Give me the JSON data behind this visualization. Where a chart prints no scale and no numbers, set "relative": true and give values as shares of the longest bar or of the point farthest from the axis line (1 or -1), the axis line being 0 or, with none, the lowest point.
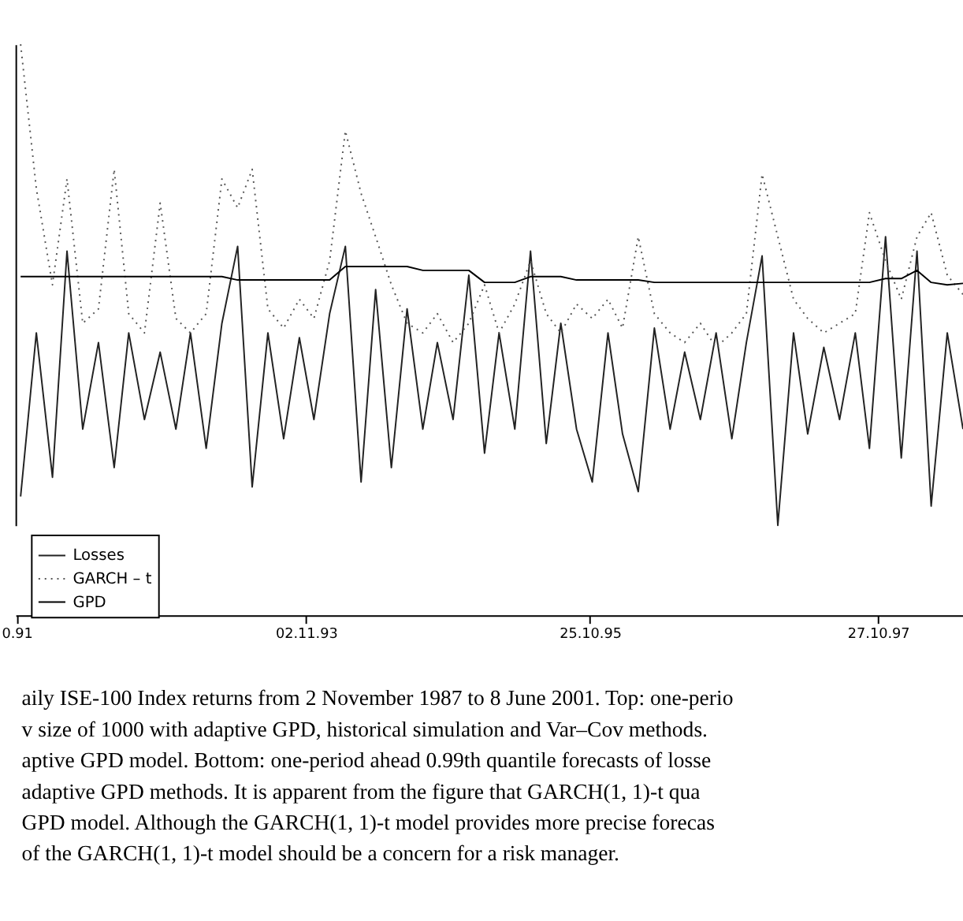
{
  "chart_data": {
    "type": "line",
    "relative": true,
    "tick_labels": "x",
    "legend": "bottom left",
    "x": [
      "1991-11-07",
      "1991-12-17",
      "1992-01-27",
      "1992-03-04",
      "1992-04-13",
      "1992-05-23",
      "1992-07-02",
      "1992-08-08",
      "1992-09-17",
      "1992-10-27",
      "1992-12-06",
      "1993-01-12",
      "1993-02-21",
      "1993-04-02",
      "1993-05-12",
      "1993-06-18",
      "1993-07-28",
      "1993-09-06",
      "1993-10-16",
      "1993-11-22",
      "1994-01-01",
      "1994-02-10",
      "1994-03-22",
      "1994-04-28",
      "1994-06-07",
      "1994-07-17",
      "1994-08-26",
      "1994-10-02",
      "1994-11-11",
      "1994-12-21",
      "1995-01-30",
      "1995-03-08",
      "1995-04-17",
      "1995-05-27",
      "1995-07-06",
      "1995-08-12",
      "1995-09-21",
      "1995-10-31",
      "1995-12-10",
      "1996-01-16",
      "1996-02-25",
      "1996-04-06",
      "1996-05-16",
      "1996-06-22",
      "1996-08-01",
      "1996-09-10",
      "1996-10-20",
      "1996-11-26",
      "1997-01-05",
      "1997-02-14",
      "1997-03-26",
      "1997-05-01",
      "1997-06-11",
      "1997-07-21",
      "1997-08-30",
      "1997-10-05",
      "1997-11-15",
      "1997-12-25",
      "1998-02-03",
      "1998-03-11",
      "1998-04-21",
      "1998-05-31"
    ],
    "xlim": [
      "1991-10-25",
      "1998-05-31"
    ],
    "xticks": [
      {
        "value": "1991-10-28",
        "label": "0.91"
      },
      {
        "value": "1993-11-02",
        "label": "02.11.93"
      },
      {
        "value": "1995-10-25",
        "label": "25.10.95"
      },
      {
        "value": "1997-10-27",
        "label": "27.10.97"
      }
    ],
    "series": [
      {
        "name": "Losses",
        "color": "#222222",
        "line_style": "solid",
        "values": [
          0.06,
          0.4,
          0.1,
          0.57,
          0.2,
          0.38,
          0.12,
          0.4,
          0.22,
          0.36,
          0.2,
          0.4,
          0.16,
          0.42,
          0.58,
          0.08,
          0.4,
          0.18,
          0.39,
          0.22,
          0.44,
          0.58,
          0.09,
          0.49,
          0.12,
          0.45,
          0.2,
          0.38,
          0.22,
          0.52,
          0.15,
          0.4,
          0.2,
          0.57,
          0.17,
          0.42,
          0.2,
          0.09,
          0.4,
          0.19,
          0.07,
          0.41,
          0.2,
          0.36,
          0.22,
          0.4,
          0.18,
          0.38,
          0.56,
          0.0,
          0.4,
          0.19,
          0.37,
          0.22,
          0.4,
          0.16,
          0.6,
          0.14,
          0.57,
          0.04,
          0.4,
          0.2
        ]
      },
      {
        "name": "GARCH – t",
        "color": "#555555",
        "line_style": "dotted",
        "values": [
          1.0,
          0.7,
          0.5,
          0.72,
          0.42,
          0.45,
          0.74,
          0.44,
          0.4,
          0.67,
          0.43,
          0.4,
          0.44,
          0.72,
          0.66,
          0.74,
          0.45,
          0.41,
          0.47,
          0.43,
          0.55,
          0.82,
          0.69,
          0.6,
          0.5,
          0.42,
          0.4,
          0.44,
          0.38,
          0.42,
          0.5,
          0.4,
          0.46,
          0.55,
          0.44,
          0.4,
          0.46,
          0.43,
          0.47,
          0.41,
          0.6,
          0.44,
          0.4,
          0.38,
          0.42,
          0.37,
          0.4,
          0.44,
          0.73,
          0.6,
          0.47,
          0.43,
          0.4,
          0.42,
          0.44,
          0.65,
          0.55,
          0.47,
          0.6,
          0.65,
          0.52,
          0.48
        ]
      },
      {
        "name": "GPD",
        "color": "#000000",
        "line_style": "solid",
        "values": [
          0.517,
          0.517,
          0.517,
          0.517,
          0.517,
          0.517,
          0.517,
          0.517,
          0.517,
          0.517,
          0.517,
          0.517,
          0.517,
          0.517,
          0.51,
          0.51,
          0.51,
          0.51,
          0.51,
          0.51,
          0.51,
          0.538,
          0.538,
          0.538,
          0.538,
          0.538,
          0.53,
          0.53,
          0.53,
          0.53,
          0.505,
          0.505,
          0.505,
          0.517,
          0.517,
          0.517,
          0.51,
          0.51,
          0.51,
          0.51,
          0.51,
          0.505,
          0.505,
          0.505,
          0.505,
          0.505,
          0.505,
          0.505,
          0.505,
          0.505,
          0.505,
          0.505,
          0.505,
          0.505,
          0.505,
          0.505,
          0.513,
          0.513,
          0.53,
          0.505,
          0.5,
          0.503
        ]
      }
    ],
    "annotations": [
      "aily ISE-100 Index returns from 2 November 1987 to 8 June 2001. Top: one-perio",
      "v size of 1000 with adaptive GPD, historical simulation and Var–Cov methods.",
      "aptive GPD model. Bottom: one-period ahead 0.99th quantile forecasts of losse",
      "adaptive GPD methods. It is apparent from the figure that GARCH(1, 1)-t qua",
      "GPD model. Although the GARCH(1, 1)-t model provides more precise forecas",
      "of the GARCH(1, 1)-t model should be a concern for a risk manager."
    ]
  }
}
